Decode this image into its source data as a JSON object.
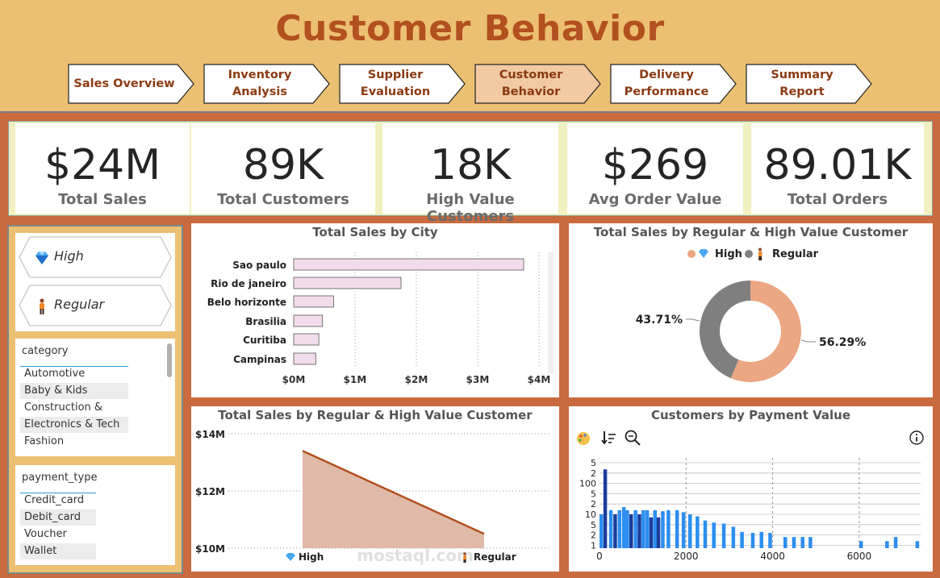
{
  "header": {
    "title": "Customer Behavior",
    "tabs": [
      {
        "label": "Sales Overview",
        "active": false
      },
      {
        "label": "Inventory Analysis",
        "active": false
      },
      {
        "label": "Supplier Evaluation",
        "active": false
      },
      {
        "label": "Customer Behavior",
        "active": true
      },
      {
        "label": "Delivery Performance",
        "active": false
      },
      {
        "label": "Summary Report",
        "active": false
      }
    ]
  },
  "kpis": [
    {
      "value": "$24M",
      "label": "Total Sales"
    },
    {
      "value": "89K",
      "label": "Total Customers"
    },
    {
      "value": "18K",
      "label": "High Value Customers"
    },
    {
      "value": "$269",
      "label": "Avg Order Value"
    },
    {
      "value": "89.01K",
      "label": "Total Orders"
    }
  ],
  "segments": [
    {
      "label": "High",
      "icon": "diamond-icon"
    },
    {
      "label": "Regular",
      "icon": "person-icon"
    }
  ],
  "category_slicer": {
    "header": "category",
    "items": [
      "Automotive",
      "Baby & Kids",
      "Construction & Tools",
      "Electronics & Tech",
      "Fashion"
    ]
  },
  "payment_slicer": {
    "header": "payment_type",
    "items": [
      "Credit_card",
      "Debit_card",
      "Voucher",
      "Wallet"
    ]
  },
  "colors": {
    "accent": "#b3501f",
    "high": "#eba682",
    "regular": "#7f7f7f",
    "bar_fill": "#f2dceb",
    "area_fill": "#dcb29f",
    "area_line": "#b3501f",
    "hist_light": "#2c8ef0",
    "hist_dark": "#1b3d9b"
  },
  "chart_data": [
    {
      "type": "bar",
      "title": "Total Sales by City",
      "categories": [
        "Sao paulo",
        "Rio de janeiro",
        "Belo horizonte",
        "Brasilia",
        "Curitiba",
        "Campinas"
      ],
      "values": [
        3.75,
        1.75,
        0.65,
        0.47,
        0.41,
        0.36
      ],
      "unit": "M",
      "xticks": [
        "$0M",
        "$1M",
        "$2M",
        "$3M",
        "$4M"
      ],
      "xlim": [
        0,
        4
      ]
    },
    {
      "type": "pie",
      "title": "Total Sales by Regular & High Value Customer",
      "legend": [
        "High",
        "Regular"
      ],
      "slices": [
        {
          "name": "High",
          "value": 56.29,
          "label": "56.29%"
        },
        {
          "name": "Regular",
          "value": 43.71,
          "label": "43.71%"
        }
      ]
    },
    {
      "type": "area",
      "title": "Total Sales by Regular & High Value Customer",
      "categories": [
        "High",
        "Regular"
      ],
      "values": [
        13.4,
        10.5
      ],
      "ylim": [
        10,
        14
      ],
      "yticks": [
        "$14M",
        "$12M",
        "$10M"
      ]
    },
    {
      "type": "bar",
      "title": "Customers by Payment Value",
      "ylabels": [
        "5",
        "2",
        "100",
        "5",
        "2",
        "10",
        "5",
        "2",
        "1"
      ],
      "xticks": [
        "0",
        "2000",
        "4000",
        "6000"
      ],
      "xlim": [
        0,
        7400
      ],
      "toolbar": [
        "palette-icon",
        "sort-icon",
        "zoom-icon",
        "info-icon"
      ],
      "bars": [
        {
          "x": 0,
          "v": 6,
          "dark": false
        },
        {
          "x": 90,
          "v": 1.65,
          "dark": true
        },
        {
          "x": 220,
          "v": 5.6,
          "dark": false
        },
        {
          "x": 320,
          "v": 6,
          "dark": true
        },
        {
          "x": 420,
          "v": 5.6,
          "dark": false
        },
        {
          "x": 520,
          "v": 5.3,
          "dark": false
        },
        {
          "x": 600,
          "v": 5.6,
          "dark": false
        },
        {
          "x": 690,
          "v": 6,
          "dark": true
        },
        {
          "x": 790,
          "v": 5.6,
          "dark": false
        },
        {
          "x": 880,
          "v": 6,
          "dark": true
        },
        {
          "x": 970,
          "v": 5.6,
          "dark": false
        },
        {
          "x": 1060,
          "v": 5.6,
          "dark": false
        },
        {
          "x": 1150,
          "v": 6.3,
          "dark": true
        },
        {
          "x": 1240,
          "v": 5.6,
          "dark": false
        },
        {
          "x": 1320,
          "v": 6.3,
          "dark": true
        },
        {
          "x": 1420,
          "v": 5.7,
          "dark": false
        },
        {
          "x": 1550,
          "v": 5.6,
          "dark": false
        },
        {
          "x": 1750,
          "v": 5.6,
          "dark": false
        },
        {
          "x": 1900,
          "v": 5.8,
          "dark": false
        },
        {
          "x": 2050,
          "v": 6.0,
          "dark": false
        },
        {
          "x": 2220,
          "v": 6.2,
          "dark": false
        },
        {
          "x": 2400,
          "v": 6.6,
          "dark": false
        },
        {
          "x": 2600,
          "v": 6.8,
          "dark": false
        },
        {
          "x": 2830,
          "v": 6.9,
          "dark": false
        },
        {
          "x": 3050,
          "v": 7.2,
          "dark": false
        },
        {
          "x": 3250,
          "v": 7.7,
          "dark": false
        },
        {
          "x": 3500,
          "v": 7.8,
          "dark": false
        },
        {
          "x": 3700,
          "v": 7.7,
          "dark": false
        },
        {
          "x": 3900,
          "v": 7.8,
          "dark": false
        },
        {
          "x": 4250,
          "v": 8.2,
          "dark": false
        },
        {
          "x": 4450,
          "v": 8.2,
          "dark": false
        },
        {
          "x": 4650,
          "v": 8.2,
          "dark": false
        },
        {
          "x": 4830,
          "v": 8.2,
          "dark": false
        },
        {
          "x": 6000,
          "v": 8.6,
          "dark": false
        },
        {
          "x": 6600,
          "v": 8.6,
          "dark": false
        },
        {
          "x": 6800,
          "v": 8.2,
          "dark": false
        },
        {
          "x": 7300,
          "v": 8.6,
          "dark": false
        }
      ]
    }
  ]
}
